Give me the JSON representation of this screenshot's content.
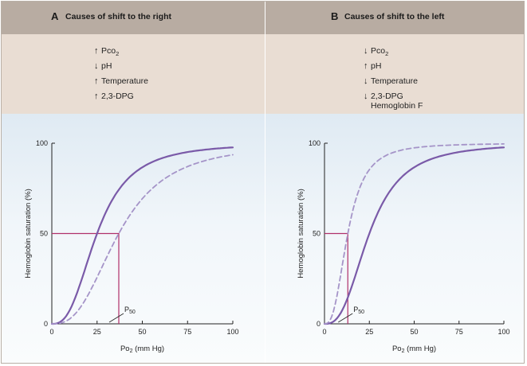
{
  "panels": [
    {
      "letter": "A",
      "title": "Causes of shift to the right",
      "causes": [
        {
          "dir": "up",
          "pre": "Pco",
          "sub": "2",
          "post": ""
        },
        {
          "dir": "down",
          "pre": "pH",
          "sub": "",
          "post": ""
        },
        {
          "dir": "up",
          "pre": "Temperature",
          "sub": "",
          "post": ""
        },
        {
          "dir": "up",
          "pre": "2,3-DPG",
          "sub": "",
          "post": ""
        }
      ],
      "continuation": "",
      "p50_label": {
        "pre": "P",
        "sub": "50"
      }
    },
    {
      "letter": "B",
      "title": "Causes of shift to the left",
      "causes": [
        {
          "dir": "down",
          "pre": "Pco",
          "sub": "2",
          "post": ""
        },
        {
          "dir": "up",
          "pre": "pH",
          "sub": "",
          "post": ""
        },
        {
          "dir": "down",
          "pre": "Temperature",
          "sub": "",
          "post": ""
        },
        {
          "dir": "down",
          "pre": "2,3-DPG",
          "sub": "",
          "post": ""
        }
      ],
      "continuation": "Hemoglobin F",
      "p50_label": {
        "pre": "P",
        "sub": "50"
      }
    }
  ],
  "colors": {
    "solid_curve": "#7a5aa8",
    "dashed_curve": "#a594c8",
    "p50_line": "#b0306a",
    "axis": "#222222"
  },
  "chart_data": [
    {
      "type": "line",
      "panel": "A",
      "xlabel": {
        "pre": "Po",
        "sub": "2",
        "post": " (mm Hg)"
      },
      "ylabel": "Hemoglobin saturation (%)",
      "xlim": [
        0,
        100
      ],
      "ylim": [
        0,
        100
      ],
      "xticks": [
        0,
        25,
        50,
        75,
        100
      ],
      "yticks": [
        0,
        50,
        100
      ],
      "series": [
        {
          "style": "solid",
          "p50": 25,
          "n": 2.7,
          "x": [
            0,
            5,
            10,
            15,
            20,
            25,
            30,
            40,
            50,
            60,
            75,
            100
          ],
          "y": [
            0,
            1.3,
            8,
            20,
            35,
            50,
            63,
            80,
            89,
            94,
            97,
            99
          ]
        },
        {
          "style": "dashed",
          "p50": 37,
          "n": 2.7,
          "x": [
            0,
            10,
            20,
            30,
            37,
            40,
            50,
            60,
            75,
            100
          ],
          "y": [
            0,
            3,
            16,
            36,
            50,
            56,
            69,
            79,
            88,
            95
          ]
        }
      ],
      "p50_marker": {
        "x": 37,
        "y": 50
      }
    },
    {
      "type": "line",
      "panel": "B",
      "xlabel": {
        "pre": "Po",
        "sub": "2",
        "post": " (mm Hg)"
      },
      "ylabel": "Hemoglobin saturation (%)",
      "xlim": [
        0,
        100
      ],
      "ylim": [
        0,
        100
      ],
      "xticks": [
        0,
        25,
        50,
        75,
        100
      ],
      "yticks": [
        0,
        50,
        100
      ],
      "series": [
        {
          "style": "solid",
          "p50": 25,
          "n": 2.7,
          "x": [
            0,
            5,
            10,
            15,
            20,
            25,
            30,
            40,
            50,
            60,
            75,
            100
          ],
          "y": [
            0,
            1.3,
            8,
            20,
            35,
            50,
            63,
            80,
            89,
            94,
            97,
            99
          ]
        },
        {
          "style": "dashed",
          "p50": 13,
          "n": 2.7,
          "x": [
            0,
            5,
            10,
            13,
            20,
            30,
            40,
            50,
            75,
            100
          ],
          "y": [
            0,
            7,
            33,
            50,
            76,
            91,
            96,
            98,
            99,
            100
          ]
        }
      ],
      "p50_marker": {
        "x": 13,
        "y": 50
      }
    }
  ]
}
